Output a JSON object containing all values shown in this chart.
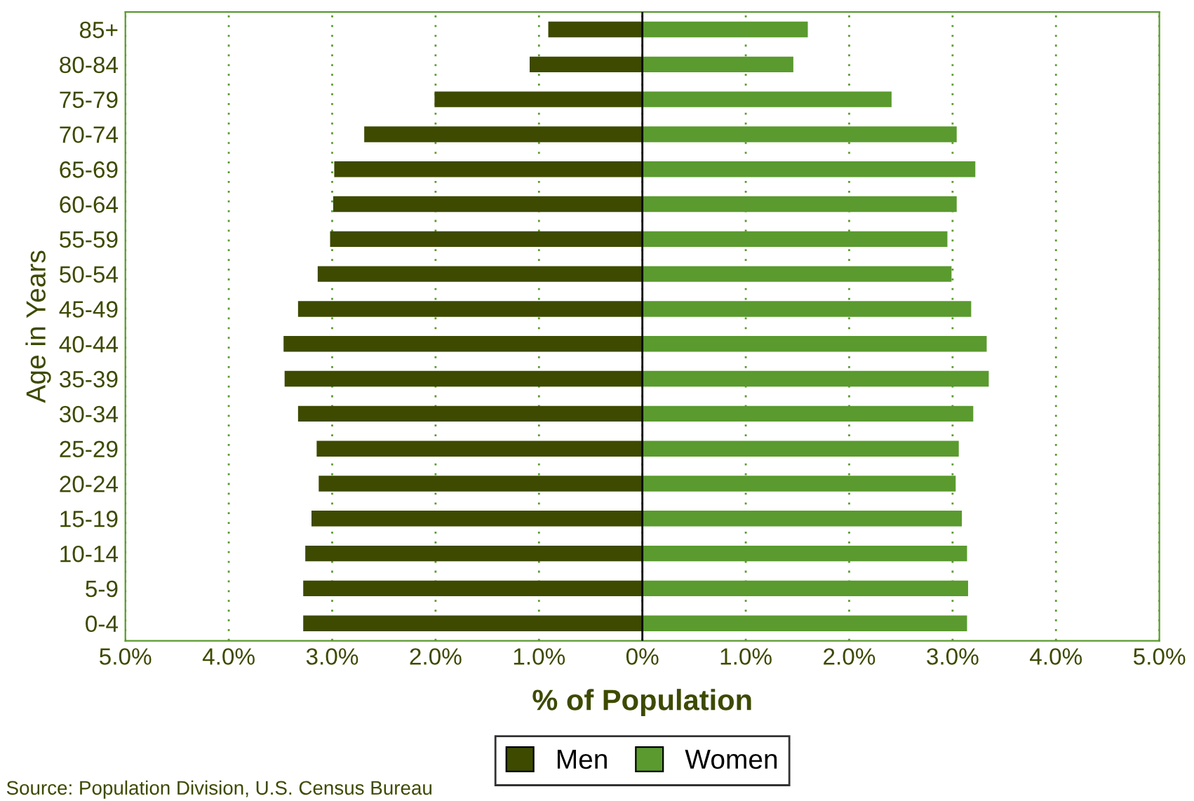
{
  "chart_data": {
    "type": "bar",
    "orientation": "horizontal",
    "stacked": true,
    "xlabel": "% of Population",
    "ylabel": "Age in Years",
    "categories": [
      "85+",
      "80-84",
      "75-79",
      "70-74",
      "65-69",
      "60-64",
      "55-59",
      "50-54",
      "45-49",
      "40-44",
      "35-39",
      "30-34",
      "25-29",
      "20-24",
      "15-19",
      "10-14",
      "5-9",
      "0-4"
    ],
    "series": [
      {
        "name": "Men",
        "color": "#3d4a00",
        "values": [
          -0.91,
          -1.09,
          -2.01,
          -2.69,
          -2.98,
          -2.99,
          -3.02,
          -3.14,
          -3.33,
          -3.47,
          -3.46,
          -3.33,
          -3.15,
          -3.13,
          -3.2,
          -3.26,
          -3.28,
          -3.28
        ]
      },
      {
        "name": "Women",
        "color": "#5a9a2e",
        "values": [
          1.6,
          1.46,
          2.41,
          3.04,
          3.22,
          3.04,
          2.95,
          2.99,
          3.18,
          3.33,
          3.35,
          3.2,
          3.06,
          3.03,
          3.09,
          3.14,
          3.15,
          3.14
        ]
      }
    ],
    "xlim": [
      -5,
      5
    ],
    "xticks": [
      {
        "value": -5,
        "label": "5.0%"
      },
      {
        "value": -4,
        "label": "4.0%"
      },
      {
        "value": -3,
        "label": "3.0%"
      },
      {
        "value": -2,
        "label": "2.0%"
      },
      {
        "value": -1,
        "label": "1.0%"
      },
      {
        "value": 0,
        "label": "0%"
      },
      {
        "value": 1,
        "label": "1.0%"
      },
      {
        "value": 2,
        "label": "2.0%"
      },
      {
        "value": 3,
        "label": "3.0%"
      },
      {
        "value": 4,
        "label": "4.0%"
      },
      {
        "value": 5,
        "label": "5.0%"
      }
    ],
    "ref_lines": [
      {
        "axis": "x",
        "value": 0,
        "color": "#000000"
      }
    ],
    "grid": "x",
    "legend": "bottom",
    "annotations": [
      "Source: Population Division, U.S. Census Bureau"
    ]
  }
}
